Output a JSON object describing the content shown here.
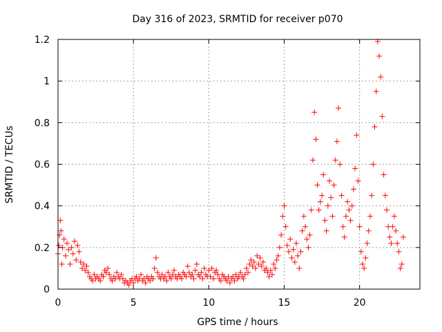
{
  "chart_data": {
    "type": "scatter",
    "title": "Day 316 of 2023, SRMTID for receiver p070",
    "xlabel": "GPS time / hours",
    "ylabel": "SRMTID / TECUs",
    "xlim": [
      0,
      24
    ],
    "ylim": [
      0,
      1.2
    ],
    "grid": true,
    "marker": "+",
    "color": "#ff0000",
    "xticks": [
      0,
      5,
      10,
      15,
      20
    ],
    "xtick_labels": [
      "0",
      "5",
      "10",
      "15",
      "20"
    ],
    "yticks": [
      0,
      0.2,
      0.4,
      0.6,
      0.8,
      1.0,
      1.2
    ],
    "ytick_labels": [
      "0",
      "0.2",
      "0.4",
      "0.6",
      "0.8",
      "1",
      "1.2"
    ],
    "series": [
      {
        "name": "SRMTID",
        "points": [
          [
            0.0,
            0.17
          ],
          [
            0.05,
            0.21
          ],
          [
            0.1,
            0.26
          ],
          [
            0.15,
            0.33
          ],
          [
            0.2,
            0.28
          ],
          [
            0.25,
            0.12
          ],
          [
            0.3,
            0.2
          ],
          [
            0.4,
            0.24
          ],
          [
            0.5,
            0.16
          ],
          [
            0.6,
            0.22
          ],
          [
            0.7,
            0.19
          ],
          [
            0.8,
            0.12
          ],
          [
            0.9,
            0.2
          ],
          [
            1.0,
            0.17
          ],
          [
            1.1,
            0.23
          ],
          [
            1.2,
            0.14
          ],
          [
            1.3,
            0.21
          ],
          [
            1.4,
            0.18
          ],
          [
            1.5,
            0.13
          ],
          [
            1.6,
            0.1
          ],
          [
            1.7,
            0.12
          ],
          [
            1.8,
            0.09
          ],
          [
            1.9,
            0.11
          ],
          [
            2.0,
            0.08
          ],
          [
            2.1,
            0.06
          ],
          [
            2.2,
            0.05
          ],
          [
            2.3,
            0.04
          ],
          [
            2.4,
            0.07
          ],
          [
            2.5,
            0.05
          ],
          [
            2.6,
            0.06
          ],
          [
            2.7,
            0.05
          ],
          [
            2.8,
            0.04
          ],
          [
            2.9,
            0.07
          ],
          [
            3.0,
            0.06
          ],
          [
            3.1,
            0.09
          ],
          [
            3.2,
            0.08
          ],
          [
            3.3,
            0.1
          ],
          [
            3.4,
            0.07
          ],
          [
            3.5,
            0.05
          ],
          [
            3.6,
            0.04
          ],
          [
            3.7,
            0.06
          ],
          [
            3.8,
            0.05
          ],
          [
            3.9,
            0.08
          ],
          [
            4.0,
            0.06
          ],
          [
            4.1,
            0.05
          ],
          [
            4.2,
            0.07
          ],
          [
            4.3,
            0.05
          ],
          [
            4.4,
            0.03
          ],
          [
            4.5,
            0.04
          ],
          [
            4.6,
            0.03
          ],
          [
            4.7,
            0.02
          ],
          [
            4.8,
            0.04
          ],
          [
            4.9,
            0.05
          ],
          [
            5.0,
            0.03
          ],
          [
            5.1,
            0.05
          ],
          [
            5.2,
            0.06
          ],
          [
            5.3,
            0.04
          ],
          [
            5.4,
            0.05
          ],
          [
            5.5,
            0.07
          ],
          [
            5.6,
            0.04
          ],
          [
            5.7,
            0.05
          ],
          [
            5.8,
            0.03
          ],
          [
            5.9,
            0.06
          ],
          [
            6.0,
            0.05
          ],
          [
            6.1,
            0.04
          ],
          [
            6.2,
            0.06
          ],
          [
            6.3,
            0.05
          ],
          [
            6.4,
            0.1
          ],
          [
            6.5,
            0.15
          ],
          [
            6.6,
            0.08
          ],
          [
            6.7,
            0.06
          ],
          [
            6.8,
            0.05
          ],
          [
            6.9,
            0.07
          ],
          [
            7.0,
            0.05
          ],
          [
            7.1,
            0.06
          ],
          [
            7.2,
            0.04
          ],
          [
            7.3,
            0.08
          ],
          [
            7.4,
            0.06
          ],
          [
            7.5,
            0.05
          ],
          [
            7.6,
            0.07
          ],
          [
            7.7,
            0.09
          ],
          [
            7.8,
            0.06
          ],
          [
            7.9,
            0.05
          ],
          [
            8.0,
            0.07
          ],
          [
            8.1,
            0.06
          ],
          [
            8.2,
            0.05
          ],
          [
            8.3,
            0.08
          ],
          [
            8.4,
            0.07
          ],
          [
            8.5,
            0.06
          ],
          [
            8.6,
            0.11
          ],
          [
            8.7,
            0.08
          ],
          [
            8.8,
            0.06
          ],
          [
            8.9,
            0.07
          ],
          [
            9.0,
            0.05
          ],
          [
            9.1,
            0.09
          ],
          [
            9.2,
            0.12
          ],
          [
            9.3,
            0.07
          ],
          [
            9.4,
            0.06
          ],
          [
            9.5,
            0.08
          ],
          [
            9.6,
            0.05
          ],
          [
            9.7,
            0.1
          ],
          [
            9.8,
            0.07
          ],
          [
            9.9,
            0.06
          ],
          [
            10.0,
            0.09
          ],
          [
            10.1,
            0.06
          ],
          [
            10.2,
            0.1
          ],
          [
            10.3,
            0.05
          ],
          [
            10.4,
            0.08
          ],
          [
            10.5,
            0.09
          ],
          [
            10.6,
            0.07
          ],
          [
            10.7,
            0.05
          ],
          [
            10.8,
            0.04
          ],
          [
            10.9,
            0.07
          ],
          [
            11.0,
            0.06
          ],
          [
            11.1,
            0.05
          ],
          [
            11.2,
            0.04
          ],
          [
            11.3,
            0.06
          ],
          [
            11.4,
            0.03
          ],
          [
            11.5,
            0.05
          ],
          [
            11.6,
            0.06
          ],
          [
            11.7,
            0.04
          ],
          [
            11.8,
            0.07
          ],
          [
            11.9,
            0.05
          ],
          [
            12.0,
            0.06
          ],
          [
            12.1,
            0.08
          ],
          [
            12.2,
            0.06
          ],
          [
            12.3,
            0.05
          ],
          [
            12.4,
            0.07
          ],
          [
            12.5,
            0.1
          ],
          [
            12.6,
            0.08
          ],
          [
            12.7,
            0.12
          ],
          [
            12.8,
            0.14
          ],
          [
            12.9,
            0.11
          ],
          [
            13.0,
            0.13
          ],
          [
            13.1,
            0.1
          ],
          [
            13.2,
            0.16
          ],
          [
            13.3,
            0.12
          ],
          [
            13.4,
            0.15
          ],
          [
            13.5,
            0.11
          ],
          [
            13.6,
            0.13
          ],
          [
            13.7,
            0.09
          ],
          [
            13.8,
            0.1
          ],
          [
            13.9,
            0.08
          ],
          [
            14.0,
            0.06
          ],
          [
            14.1,
            0.09
          ],
          [
            14.2,
            0.07
          ],
          [
            14.3,
            0.12
          ],
          [
            14.4,
            0.1
          ],
          [
            14.5,
            0.14
          ],
          [
            14.6,
            0.16
          ],
          [
            14.7,
            0.2
          ],
          [
            14.8,
            0.26
          ],
          [
            14.9,
            0.35
          ],
          [
            15.0,
            0.4
          ],
          [
            15.1,
            0.3
          ],
          [
            15.2,
            0.21
          ],
          [
            15.3,
            0.18
          ],
          [
            15.4,
            0.24
          ],
          [
            15.5,
            0.15
          ],
          [
            15.6,
            0.19
          ],
          [
            15.7,
            0.13
          ],
          [
            15.8,
            0.22
          ],
          [
            15.9,
            0.16
          ],
          [
            16.0,
            0.1
          ],
          [
            16.1,
            0.18
          ],
          [
            16.2,
            0.28
          ],
          [
            16.3,
            0.35
          ],
          [
            16.4,
            0.3
          ],
          [
            16.5,
            0.24
          ],
          [
            16.6,
            0.2
          ],
          [
            16.7,
            0.26
          ],
          [
            16.8,
            0.38
          ],
          [
            16.9,
            0.62
          ],
          [
            17.0,
            0.85
          ],
          [
            17.1,
            0.72
          ],
          [
            17.2,
            0.5
          ],
          [
            17.3,
            0.38
          ],
          [
            17.4,
            0.42
          ],
          [
            17.5,
            0.45
          ],
          [
            17.6,
            0.55
          ],
          [
            17.7,
            0.33
          ],
          [
            17.8,
            0.28
          ],
          [
            17.9,
            0.4
          ],
          [
            18.0,
            0.52
          ],
          [
            18.1,
            0.44
          ],
          [
            18.2,
            0.35
          ],
          [
            18.3,
            0.5
          ],
          [
            18.4,
            0.62
          ],
          [
            18.5,
            0.71
          ],
          [
            18.6,
            0.87
          ],
          [
            18.7,
            0.6
          ],
          [
            18.8,
            0.45
          ],
          [
            18.9,
            0.3
          ],
          [
            19.0,
            0.25
          ],
          [
            19.1,
            0.35
          ],
          [
            19.2,
            0.42
          ],
          [
            19.3,
            0.38
          ],
          [
            19.4,
            0.33
          ],
          [
            19.5,
            0.4
          ],
          [
            19.6,
            0.48
          ],
          [
            19.7,
            0.58
          ],
          [
            19.8,
            0.74
          ],
          [
            19.9,
            0.52
          ],
          [
            20.0,
            0.3
          ],
          [
            20.1,
            0.18
          ],
          [
            20.2,
            0.12
          ],
          [
            20.3,
            0.1
          ],
          [
            20.4,
            0.15
          ],
          [
            20.5,
            0.22
          ],
          [
            20.6,
            0.28
          ],
          [
            20.7,
            0.35
          ],
          [
            20.8,
            0.45
          ],
          [
            20.9,
            0.6
          ],
          [
            21.0,
            0.78
          ],
          [
            21.1,
            0.95
          ],
          [
            21.2,
            1.19
          ],
          [
            21.3,
            1.12
          ],
          [
            21.4,
            1.02
          ],
          [
            21.5,
            0.83
          ],
          [
            21.6,
            0.55
          ],
          [
            21.7,
            0.45
          ],
          [
            21.8,
            0.38
          ],
          [
            21.9,
            0.3
          ],
          [
            22.0,
            0.25
          ],
          [
            22.1,
            0.22
          ],
          [
            22.2,
            0.3
          ],
          [
            22.3,
            0.35
          ],
          [
            22.4,
            0.28
          ],
          [
            22.5,
            0.22
          ],
          [
            22.6,
            0.18
          ],
          [
            22.7,
            0.1
          ],
          [
            22.8,
            0.12
          ],
          [
            22.9,
            0.25
          ]
        ]
      }
    ]
  }
}
